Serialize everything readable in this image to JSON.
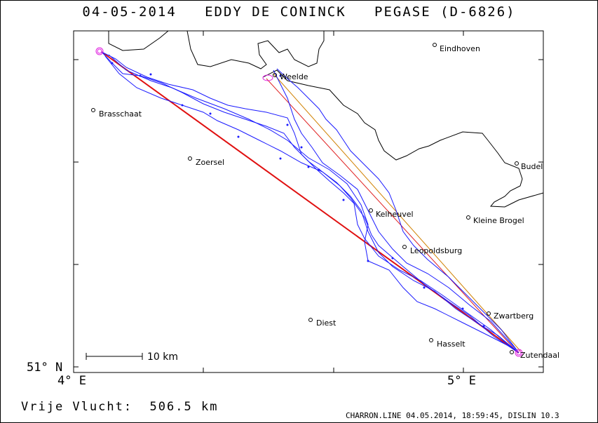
{
  "title": {
    "date": "04-05-2014",
    "pilot": "EDDY DE CONINCK",
    "glider": "PEGASE (D-6826)"
  },
  "axes": {
    "lat_label": "51° N",
    "lon_labels": [
      "4° E",
      "5° E"
    ]
  },
  "places": [
    {
      "name": "Eindhoven"
    },
    {
      "name": "Weelde"
    },
    {
      "name": "Brasschaat"
    },
    {
      "name": "Zoersel"
    },
    {
      "name": "Budel"
    },
    {
      "name": "Kelheuvel"
    },
    {
      "name": "Kleine Brogel"
    },
    {
      "name": "Leopoldsburg"
    },
    {
      "name": "Zwartberg"
    },
    {
      "name": "Diest"
    },
    {
      "name": "Hasselt"
    },
    {
      "name": "Zutendaal"
    }
  ],
  "scale_bar": {
    "label": "10 km"
  },
  "footer": {
    "distance_label": "Vrije Vlucht:",
    "distance_value": "506.5 km"
  },
  "credit": "CHARRON.LINE 04.05.2014, 18:59:45, DISLIN 10.3",
  "colors": {
    "track": "#1a1aff",
    "task_leg_main": "#e01010",
    "task_leg_thin": "#e02020",
    "task_leg_orange": "#d08000",
    "turnpoint": "#e020e0",
    "border": "#000000"
  }
}
